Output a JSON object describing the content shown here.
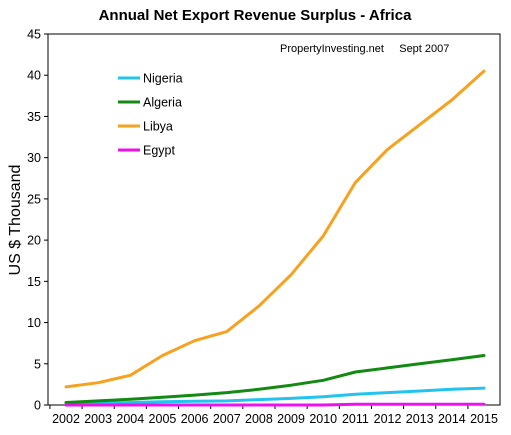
{
  "chart_data": {
    "type": "line",
    "title": "Annual Net Export Revenue Surplus - Africa",
    "annotation": "PropertyInvesting.net     Sept 2007",
    "xlabel": "",
    "ylabel": "US $ Thousand",
    "ylim": [
      0,
      45
    ],
    "yticks": [
      0,
      5,
      10,
      15,
      20,
      25,
      30,
      35,
      40,
      45
    ],
    "categories": [
      "2002",
      "2003",
      "2004",
      "2005",
      "2006",
      "2007",
      "2008",
      "2009",
      "2010",
      "2011",
      "2012",
      "2013",
      "2014",
      "2015"
    ],
    "grid": false,
    "legend_position": "top-left",
    "series": [
      {
        "name": "Nigeria",
        "color": "#22c4ef",
        "values": [
          0.1,
          0.2,
          0.3,
          0.4,
          0.45,
          0.5,
          0.65,
          0.8,
          1.0,
          1.3,
          1.5,
          1.7,
          1.9,
          2.05
        ]
      },
      {
        "name": "Algeria",
        "color": "#138a13",
        "values": [
          0.3,
          0.5,
          0.7,
          0.95,
          1.2,
          1.5,
          1.9,
          2.4,
          3.0,
          4.0,
          4.5,
          5.0,
          5.5,
          6.0
        ]
      },
      {
        "name": "Libya",
        "color": "#f7a11e",
        "values": [
          2.2,
          2.7,
          3.6,
          6.0,
          7.8,
          8.9,
          12.0,
          15.8,
          20.5,
          27.0,
          31.0,
          34.0,
          37.0,
          40.5
        ]
      },
      {
        "name": "Egypt",
        "color": "#ee10ee",
        "values": [
          0,
          0,
          0,
          0,
          0,
          0,
          0,
          0,
          0,
          0.1,
          0.1,
          0.1,
          0.1,
          0.1
        ]
      }
    ]
  }
}
